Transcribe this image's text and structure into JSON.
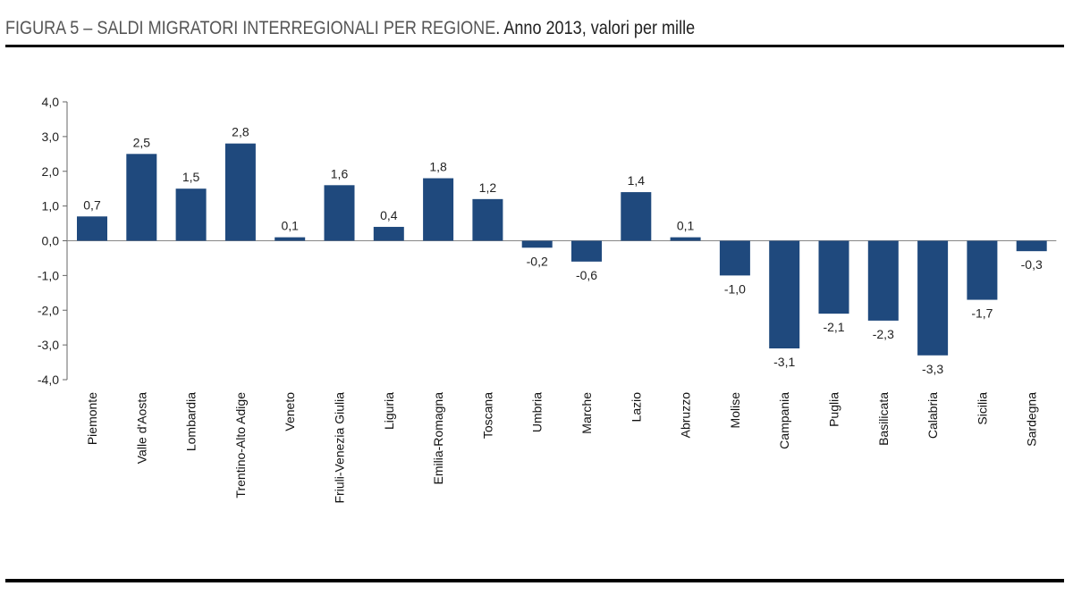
{
  "header": {
    "title_main": "FIGURA 5 – SALDI MIGRATORI INTERREGIONALI PER REGIONE",
    "title_sub": ". Anno 2013, valori per mille"
  },
  "chart_data": {
    "type": "bar",
    "title": "FIGURA 5 – SALDI MIGRATORI INTERREGIONALI PER REGIONE. Anno 2013, valori per mille",
    "xlabel": "",
    "ylabel": "",
    "ylim": [
      -4.0,
      4.0
    ],
    "yticks": [
      4.0,
      3.0,
      2.0,
      1.0,
      0.0,
      -1.0,
      -2.0,
      -3.0,
      -4.0
    ],
    "ytick_labels": [
      "4,0",
      "3,0",
      "2,0",
      "1,0",
      "0,0",
      "-1,0",
      "-2,0",
      "-3,0",
      "-4,0"
    ],
    "grid": false,
    "legend": "none",
    "bar_color": "#1f497d",
    "categories": [
      "Piemonte",
      "Valle d'Aosta",
      "Lombardia",
      "Trentino-Alto Adige",
      "Veneto",
      "Friuli-Venezia Giulia",
      "Liguria",
      "Emilia-Romagna",
      "Toscana",
      "Umbria",
      "Marche",
      "Lazio",
      "Abruzzo",
      "Molise",
      "Campania",
      "Puglia",
      "Basilicata",
      "Calabria",
      "Sicilia",
      "Sardegna"
    ],
    "values": [
      0.7,
      2.5,
      1.5,
      2.8,
      0.1,
      1.6,
      0.4,
      1.8,
      1.2,
      -0.2,
      -0.6,
      1.4,
      0.1,
      -1.0,
      -3.1,
      -2.1,
      -2.3,
      -3.3,
      -1.7,
      -0.3
    ],
    "value_labels": [
      "0,7",
      "2,5",
      "1,5",
      "2,8",
      "0,1",
      "1,6",
      "0,4",
      "1,8",
      "1,2",
      "-0,2",
      "-0,6",
      "1,4",
      "0,1",
      "-1,0",
      "-3,1",
      "-2,1",
      "-2,3",
      "-3,3",
      "-1,7",
      "-0,3"
    ]
  }
}
